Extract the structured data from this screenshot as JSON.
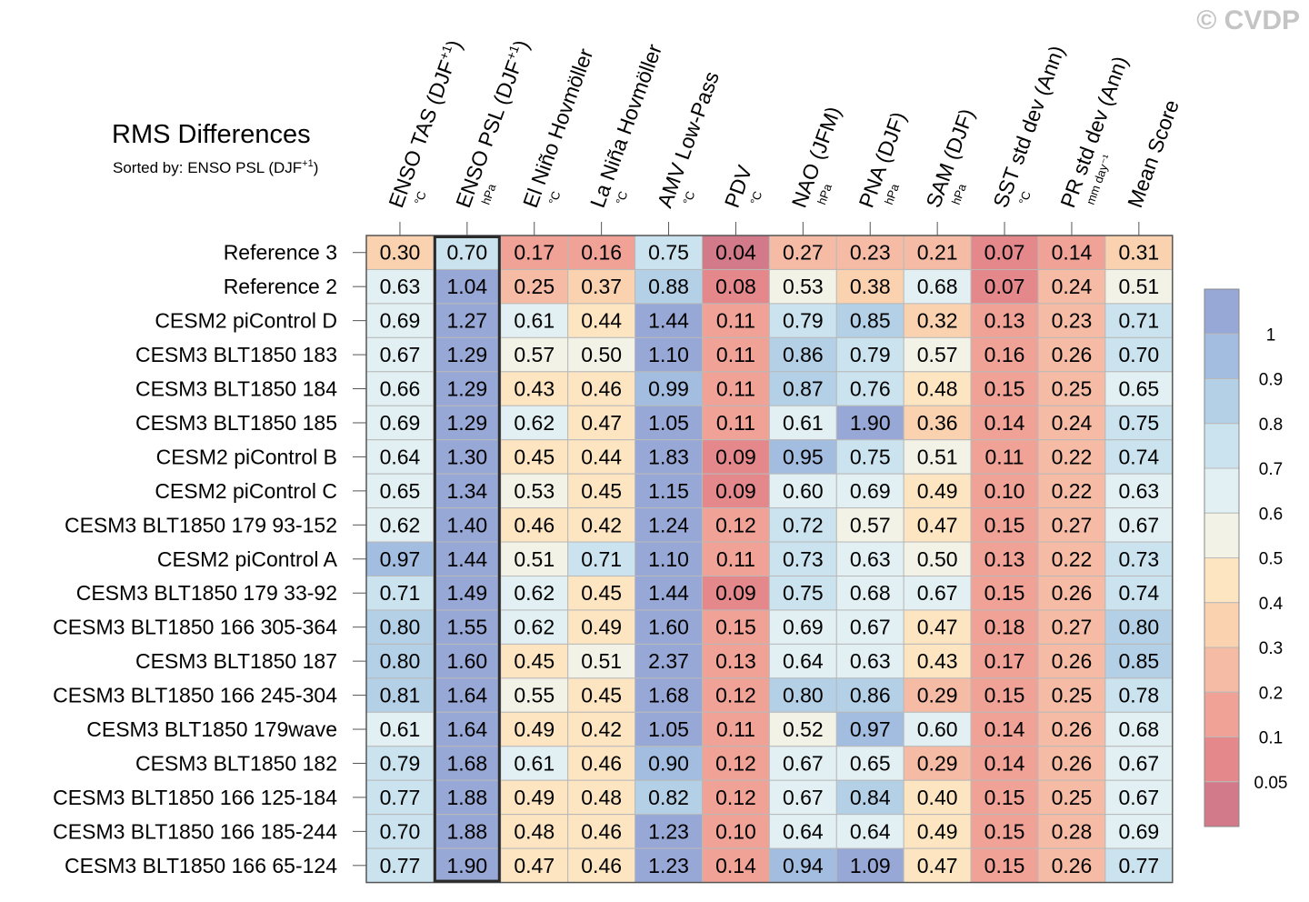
{
  "watermark": "© CVDP",
  "chart_data": {
    "type": "table",
    "title": "RMS Differences",
    "subtitle": "Sorted by: ENSO PSL (DJF",
    "subtitle_sup": "+1",
    "subtitle_end": ")",
    "sorted_column_index": 1,
    "columns": [
      {
        "label": "ENSO TAS (DJF",
        "sup": "+1",
        "end": ")",
        "unit": "°C"
      },
      {
        "label": "ENSO PSL (DJF",
        "sup": "+1",
        "end": ")",
        "unit": "hPa"
      },
      {
        "label": "El Niño Hovmöller",
        "sup": "",
        "end": "",
        "unit": "°C"
      },
      {
        "label": "La Niña Hovmöller",
        "sup": "",
        "end": "",
        "unit": "°C"
      },
      {
        "label": "AMV Low-Pass",
        "sup": "",
        "end": "",
        "unit": "°C"
      },
      {
        "label": "PDV",
        "sup": "",
        "end": "",
        "unit": "°C"
      },
      {
        "label": "NAO (JFM)",
        "sup": "",
        "end": "",
        "unit": "hPa"
      },
      {
        "label": "PNA (DJF)",
        "sup": "",
        "end": "",
        "unit": "hPa"
      },
      {
        "label": "SAM (DJF)",
        "sup": "",
        "end": "",
        "unit": "hPa"
      },
      {
        "label": "SST std dev (Ann)",
        "sup": "",
        "end": "",
        "unit": "°C"
      },
      {
        "label": "PR std dev (Ann)",
        "sup": "",
        "end": "",
        "unit": "mm day⁻¹"
      },
      {
        "label": "Mean Score",
        "sup": "",
        "end": "",
        "unit": ""
      }
    ],
    "rows": [
      {
        "name": "Reference 3",
        "values": [
          "0.30",
          "0.70",
          "0.17",
          "0.16",
          "0.75",
          "0.04",
          "0.27",
          "0.23",
          "0.21",
          "0.07",
          "0.14",
          "0.31"
        ],
        "cells": [
          0.3,
          0.7,
          0.17,
          0.16,
          0.75,
          0.04,
          0.27,
          0.23,
          0.21,
          0.07,
          0.14,
          0.31
        ]
      },
      {
        "name": "Reference 2",
        "values": [
          "0.63",
          "1.04",
          "0.25",
          "0.37",
          "0.88",
          "0.08",
          "0.53",
          "0.38",
          "0.68",
          "0.07",
          "0.24",
          "0.51"
        ],
        "cells": [
          0.63,
          1.04,
          0.25,
          0.37,
          0.88,
          0.08,
          0.53,
          0.38,
          0.68,
          0.07,
          0.24,
          0.51
        ]
      },
      {
        "name": "CESM2 piControl D",
        "values": [
          "0.69",
          "1.27",
          "0.61",
          "0.44",
          "1.44",
          "0.11",
          "0.79",
          "0.85",
          "0.32",
          "0.13",
          "0.23",
          "0.71"
        ],
        "cells": [
          0.69,
          1.27,
          0.61,
          0.44,
          1.44,
          0.11,
          0.79,
          0.85,
          0.32,
          0.13,
          0.23,
          0.71
        ]
      },
      {
        "name": "CESM3 BLT1850 183",
        "values": [
          "0.67",
          "1.29",
          "0.57",
          "0.50",
          "1.10",
          "0.11",
          "0.86",
          "0.79",
          "0.57",
          "0.16",
          "0.26",
          "0.70"
        ],
        "cells": [
          0.67,
          1.29,
          0.57,
          0.5,
          1.1,
          0.11,
          0.86,
          0.79,
          0.57,
          0.16,
          0.26,
          0.7
        ]
      },
      {
        "name": "CESM3 BLT1850 184",
        "values": [
          "0.66",
          "1.29",
          "0.43",
          "0.46",
          "0.99",
          "0.11",
          "0.87",
          "0.76",
          "0.48",
          "0.15",
          "0.25",
          "0.65"
        ],
        "cells": [
          0.66,
          1.29,
          0.43,
          0.46,
          0.99,
          0.11,
          0.87,
          0.76,
          0.48,
          0.15,
          0.25,
          0.65
        ]
      },
      {
        "name": "CESM3 BLT1850 185",
        "values": [
          "0.69",
          "1.29",
          "0.62",
          "0.47",
          "1.05",
          "0.11",
          "0.61",
          "1.90",
          "0.36",
          "0.14",
          "0.24",
          "0.75"
        ],
        "cells": [
          0.69,
          1.29,
          0.62,
          0.47,
          1.05,
          0.11,
          0.61,
          1.9,
          0.36,
          0.14,
          0.24,
          0.75
        ]
      },
      {
        "name": "CESM2 piControl B",
        "values": [
          "0.64",
          "1.30",
          "0.45",
          "0.44",
          "1.83",
          "0.09",
          "0.95",
          "0.75",
          "0.51",
          "0.11",
          "0.22",
          "0.74"
        ],
        "cells": [
          0.64,
          1.3,
          0.45,
          0.44,
          1.83,
          0.09,
          0.95,
          0.75,
          0.51,
          0.11,
          0.22,
          0.74
        ]
      },
      {
        "name": "CESM2 piControl C",
        "values": [
          "0.65",
          "1.34",
          "0.53",
          "0.45",
          "1.15",
          "0.09",
          "0.60",
          "0.69",
          "0.49",
          "0.10",
          "0.22",
          "0.63"
        ],
        "cells": [
          0.65,
          1.34,
          0.53,
          0.45,
          1.15,
          0.09,
          0.6,
          0.69,
          0.49,
          0.1,
          0.22,
          0.63
        ]
      },
      {
        "name": "CESM3 BLT1850 179 93-152",
        "values": [
          "0.62",
          "1.40",
          "0.46",
          "0.42",
          "1.24",
          "0.12",
          "0.72",
          "0.57",
          "0.47",
          "0.15",
          "0.27",
          "0.67"
        ],
        "cells": [
          0.62,
          1.4,
          0.46,
          0.42,
          1.24,
          0.12,
          0.72,
          0.57,
          0.47,
          0.15,
          0.27,
          0.67
        ]
      },
      {
        "name": "CESM2 piControl A",
        "values": [
          "0.97",
          "1.44",
          "0.51",
          "0.71",
          "1.10",
          "0.11",
          "0.73",
          "0.63",
          "0.50",
          "0.13",
          "0.22",
          "0.73"
        ],
        "cells": [
          0.97,
          1.44,
          0.51,
          0.71,
          1.1,
          0.11,
          0.73,
          0.63,
          0.5,
          0.13,
          0.22,
          0.73
        ]
      },
      {
        "name": "CESM3 BLT1850 179 33-92",
        "values": [
          "0.71",
          "1.49",
          "0.62",
          "0.45",
          "1.44",
          "0.09",
          "0.75",
          "0.68",
          "0.67",
          "0.15",
          "0.26",
          "0.74"
        ],
        "cells": [
          0.71,
          1.49,
          0.62,
          0.45,
          1.44,
          0.09,
          0.75,
          0.68,
          0.67,
          0.15,
          0.26,
          0.74
        ]
      },
      {
        "name": "CESM3 BLT1850 166 305-364",
        "values": [
          "0.80",
          "1.55",
          "0.62",
          "0.49",
          "1.60",
          "0.15",
          "0.69",
          "0.67",
          "0.47",
          "0.18",
          "0.27",
          "0.80"
        ],
        "cells": [
          0.8,
          1.55,
          0.62,
          0.49,
          1.6,
          0.15,
          0.69,
          0.67,
          0.47,
          0.18,
          0.27,
          0.8
        ]
      },
      {
        "name": "CESM3 BLT1850 187",
        "values": [
          "0.80",
          "1.60",
          "0.45",
          "0.51",
          "2.37",
          "0.13",
          "0.64",
          "0.63",
          "0.43",
          "0.17",
          "0.26",
          "0.85"
        ],
        "cells": [
          0.8,
          1.6,
          0.45,
          0.51,
          2.37,
          0.13,
          0.64,
          0.63,
          0.43,
          0.17,
          0.26,
          0.85
        ]
      },
      {
        "name": "CESM3 BLT1850 166 245-304",
        "values": [
          "0.81",
          "1.64",
          "0.55",
          "0.45",
          "1.68",
          "0.12",
          "0.80",
          "0.86",
          "0.29",
          "0.15",
          "0.25",
          "0.78"
        ],
        "cells": [
          0.81,
          1.64,
          0.55,
          0.45,
          1.68,
          0.12,
          0.8,
          0.86,
          0.29,
          0.15,
          0.25,
          0.78
        ]
      },
      {
        "name": "CESM3 BLT1850 179wave",
        "values": [
          "0.61",
          "1.64",
          "0.49",
          "0.42",
          "1.05",
          "0.11",
          "0.52",
          "0.97",
          "0.60",
          "0.14",
          "0.26",
          "0.68"
        ],
        "cells": [
          0.61,
          1.64,
          0.49,
          0.42,
          1.05,
          0.11,
          0.52,
          0.97,
          0.6,
          0.14,
          0.26,
          0.68
        ]
      },
      {
        "name": "CESM3 BLT1850 182",
        "values": [
          "0.79",
          "1.68",
          "0.61",
          "0.46",
          "0.90",
          "0.12",
          "0.67",
          "0.65",
          "0.29",
          "0.14",
          "0.26",
          "0.67"
        ],
        "cells": [
          0.79,
          1.68,
          0.61,
          0.46,
          0.9,
          0.12,
          0.67,
          0.65,
          0.29,
          0.14,
          0.26,
          0.67
        ]
      },
      {
        "name": "CESM3 BLT1850 166 125-184",
        "values": [
          "0.77",
          "1.88",
          "0.49",
          "0.48",
          "0.82",
          "0.12",
          "0.67",
          "0.84",
          "0.40",
          "0.15",
          "0.25",
          "0.67"
        ],
        "cells": [
          0.77,
          1.88,
          0.49,
          0.48,
          0.82,
          0.12,
          0.67,
          0.84,
          0.4,
          0.15,
          0.25,
          0.67
        ]
      },
      {
        "name": "CESM3 BLT1850 166 185-244",
        "values": [
          "0.70",
          "1.88",
          "0.48",
          "0.46",
          "1.23",
          "0.10",
          "0.64",
          "0.64",
          "0.49",
          "0.15",
          "0.28",
          "0.69"
        ],
        "cells": [
          0.7,
          1.88,
          0.48,
          0.46,
          1.23,
          0.1,
          0.64,
          0.64,
          0.49,
          0.15,
          0.28,
          0.69
        ]
      },
      {
        "name": "CESM3 BLT1850 166 65-124",
        "values": [
          "0.77",
          "1.90",
          "0.47",
          "0.46",
          "1.23",
          "0.14",
          "0.94",
          "1.09",
          "0.47",
          "0.15",
          "0.26",
          "0.77"
        ],
        "cells": [
          0.77,
          1.9,
          0.47,
          0.46,
          1.23,
          0.14,
          0.94,
          1.09,
          0.47,
          0.15,
          0.26,
          0.77
        ]
      }
    ],
    "colorbar": {
      "levels": [
        0.05,
        0.1,
        0.2,
        0.3,
        0.4,
        0.5,
        0.6,
        0.7,
        0.8,
        0.9,
        1
      ],
      "tick_labels": [
        "1",
        "0.9",
        "0.8",
        "0.7",
        "0.6",
        "0.5",
        "0.4",
        "0.3",
        "0.2",
        "0.1",
        "0.05"
      ],
      "colors": [
        "#d27a89",
        "#e4888b",
        "#f0a296",
        "#f6bba4",
        "#fad2b0",
        "#fde5c2",
        "#f2f2e6",
        "#e2f0f4",
        "#cae3ef",
        "#b3d0e6",
        "#a3bde0",
        "#98a8d6"
      ]
    }
  }
}
